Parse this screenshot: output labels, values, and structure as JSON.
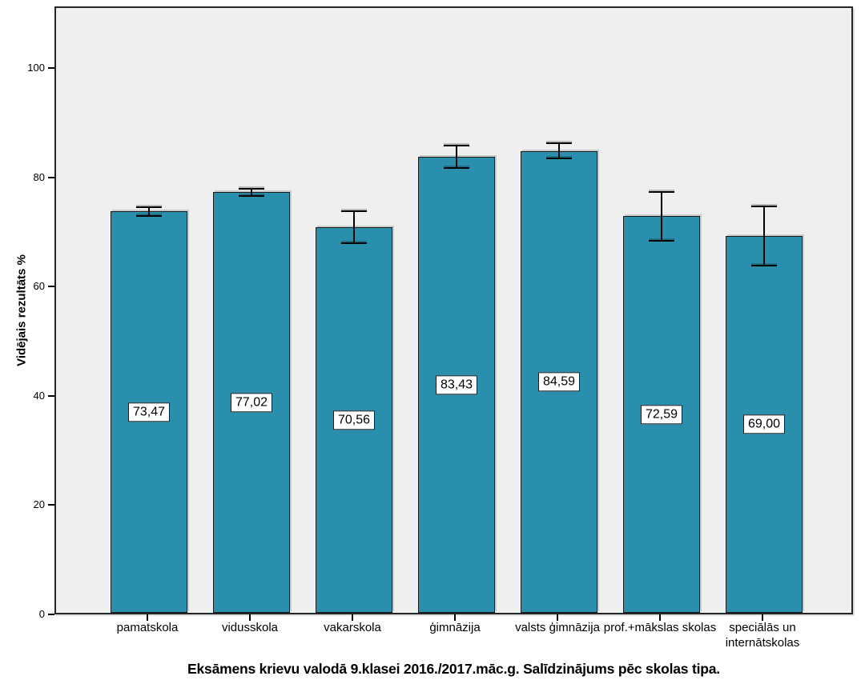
{
  "chart_data": {
    "type": "bar",
    "title": "Eksāmens krievu valodā 9.klasei 2016./2017.māc.g. Salīdzinājums pēc skolas tipa.",
    "xlabel": "",
    "ylabel": "Vidējais rezultāts %",
    "categories": [
      "pamatskola",
      "vidusskola",
      "vakarskola",
      "ģimnāzija",
      "valsts ģimnāzija",
      "prof.+mākslas skolas",
      "speciālās un internātskolas"
    ],
    "values": [
      73.47,
      77.02,
      70.56,
      83.43,
      84.59,
      72.59,
      69.0
    ],
    "value_labels": [
      "73,47",
      "77,02",
      "70,56",
      "83,43",
      "84,59",
      "72,59",
      "69,00"
    ],
    "error_bars": {
      "symmetric": true,
      "values": [
        1.0,
        0.8,
        3.1,
        2.2,
        1.5,
        4.6,
        5.6
      ]
    },
    "yticks": [
      0,
      20,
      40,
      60,
      80,
      100
    ],
    "ytick_labels": [
      "0",
      "20",
      "40",
      "60",
      "80",
      "100"
    ],
    "ylim": [
      0,
      111.3
    ],
    "grid": false,
    "legend": null,
    "bar_color": "#2A8FAD",
    "bar_border_color": "#1a1a1a",
    "plot_background": "#EFEFEF",
    "outer_background": "#ffffff",
    "error_bar_color": "#000000"
  }
}
